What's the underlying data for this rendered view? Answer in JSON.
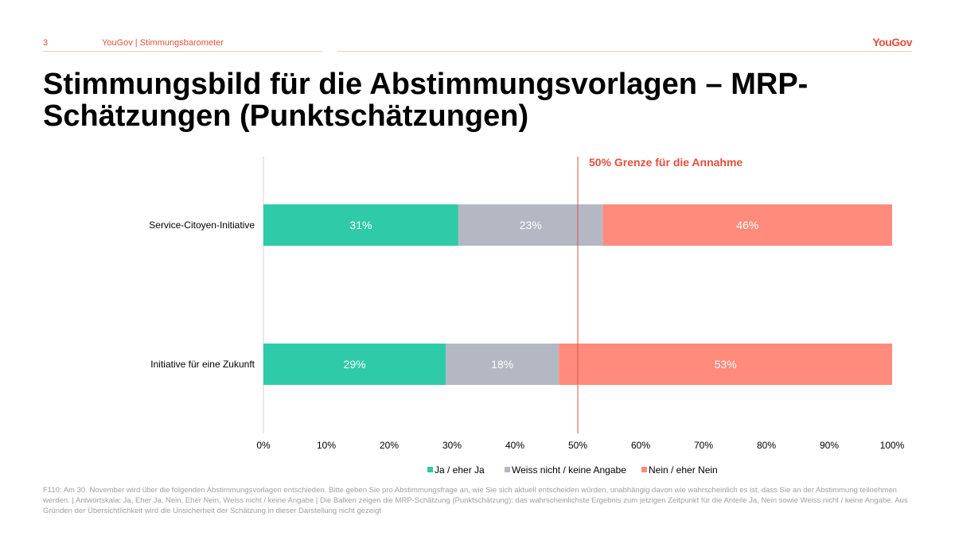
{
  "header": {
    "page_number": "3",
    "section": "YouGov | Stimmungsbarometer",
    "logo": "YouGov"
  },
  "title": "Stimmungsbild für die Abstimmungsvorlagen – MRP-Schätzungen (Punktschätzungen)",
  "colors": {
    "ja": "#2fcba9",
    "weiss": "#b3b8c3",
    "nein": "#fe8b7c",
    "accent": "#e0503c"
  },
  "chart_data": {
    "type": "bar",
    "orientation": "horizontal",
    "stacked": true,
    "categories": [
      "Service-Citoyen-Initiative",
      "Initiative für eine Zukunft"
    ],
    "series": [
      {
        "name": "Ja / eher Ja",
        "values": [
          31,
          29
        ],
        "labels": [
          "31%",
          "29%"
        ]
      },
      {
        "name": "Weiss nicht / keine Angabe",
        "values": [
          23,
          18
        ],
        "labels": [
          "23%",
          "18%"
        ]
      },
      {
        "name": "Nein / eher Nein",
        "values": [
          46,
          53
        ],
        "labels": [
          "46%",
          "53%"
        ]
      }
    ],
    "xlim": [
      0,
      100
    ],
    "xticks": [
      "0%",
      "10%",
      "20%",
      "30%",
      "40%",
      "50%",
      "60%",
      "70%",
      "80%",
      "90%",
      "100%"
    ],
    "reference_line": {
      "value": 50,
      "label": "50% Grenze für die Annahme"
    },
    "legend": "bottom"
  },
  "footnote": "F110: Am 30. November wird über die folgenden Abstimmungsvorlagen entschieden. Bitte geben Sie pro Abstimmungsfrage an, wie Sie sich aktuell entscheiden würden, unabhängig davon wie wahrscheinlich es ist, dass Sie an der Abstimmung teilnehmen werden. | Antwortskala: Ja, Eher Ja, Nein, Eher Nein, Weiss nicht / keine Angabe | Die Balken zeigen die MRP-Schätzung (Punktschätzung): das wahrscheinlichste Ergebnis zum jetzigen Zeitpunkt für die Anteile Ja, Nein sowie Weiss nicht / keine Angabe. Aus Gründen der Übersichtlichkeit wird die Unsicherheit der Schätzung in dieser Darstellung nicht gezeigt"
}
